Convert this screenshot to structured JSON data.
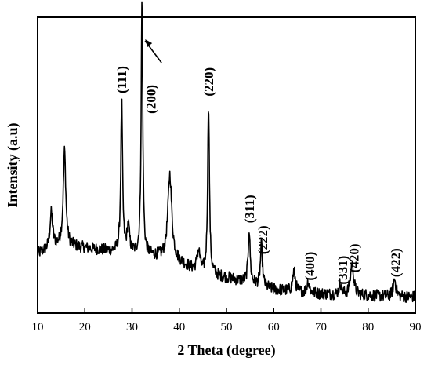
{
  "chart_data": {
    "type": "line",
    "title": "",
    "xlabel": "2 Theta (degree)",
    "ylabel": "Intensity (a.u)",
    "xlim": [
      10,
      90
    ],
    "x_ticks": [
      10,
      20,
      30,
      40,
      50,
      60,
      70,
      80,
      90
    ],
    "ylim": [
      0,
      100
    ],
    "y_ticks_shown": false,
    "grid": false,
    "legend": "none",
    "color": "#000000",
    "baseline": [
      [
        10,
        20
      ],
      [
        15,
        23
      ],
      [
        20,
        22
      ],
      [
        25,
        21
      ],
      [
        30,
        20
      ],
      [
        35,
        19
      ],
      [
        40,
        17
      ],
      [
        45,
        13
      ],
      [
        50,
        12
      ],
      [
        55,
        10
      ],
      [
        60,
        8
      ],
      [
        65,
        7
      ],
      [
        70,
        6.5
      ],
      [
        75,
        6
      ],
      [
        80,
        6
      ],
      [
        85,
        5.5
      ],
      [
        90,
        5.5
      ]
    ],
    "peaks": [
      {
        "x": 12.9,
        "height": 12,
        "width": 0.35
      },
      {
        "x": 15.7,
        "height": 32,
        "width": 0.32
      },
      {
        "x": 27.8,
        "height": 51,
        "width": 0.22
      },
      {
        "x": 29.2,
        "height": 9,
        "width": 0.3
      },
      {
        "x": 32.1,
        "height": 86,
        "width": 0.2
      },
      {
        "x": 38.0,
        "height": 29,
        "width": 0.5
      },
      {
        "x": 44.1,
        "height": 7,
        "width": 0.4
      },
      {
        "x": 46.2,
        "height": 58,
        "width": 0.22
      },
      {
        "x": 54.8,
        "height": 18,
        "width": 0.25
      },
      {
        "x": 57.4,
        "height": 14,
        "width": 0.25
      },
      {
        "x": 64.3,
        "height": 7,
        "width": 0.35
      },
      {
        "x": 67.3,
        "height": 4,
        "width": 0.3
      },
      {
        "x": 74.1,
        "height": 4,
        "width": 0.3
      },
      {
        "x": 76.6,
        "height": 11,
        "width": 0.4
      },
      {
        "x": 85.6,
        "height": 6,
        "width": 0.35
      }
    ],
    "annotations": [
      {
        "text": "(111)",
        "x": 27.8
      },
      {
        "text": "(200)",
        "x": 34.0
      },
      {
        "text": "(220)",
        "x": 46.2
      },
      {
        "text": "(311)",
        "x": 54.8
      },
      {
        "text": "(222)",
        "x": 57.6
      },
      {
        "text": "(400)",
        "x": 67.6
      },
      {
        "text": "(331)",
        "x": 74.6
      },
      {
        "text": "(420)",
        "x": 77.0
      },
      {
        "text": "(422)",
        "x": 85.8
      }
    ],
    "arrow_annotation": {
      "label": "(200)",
      "x": 32.1
    }
  }
}
